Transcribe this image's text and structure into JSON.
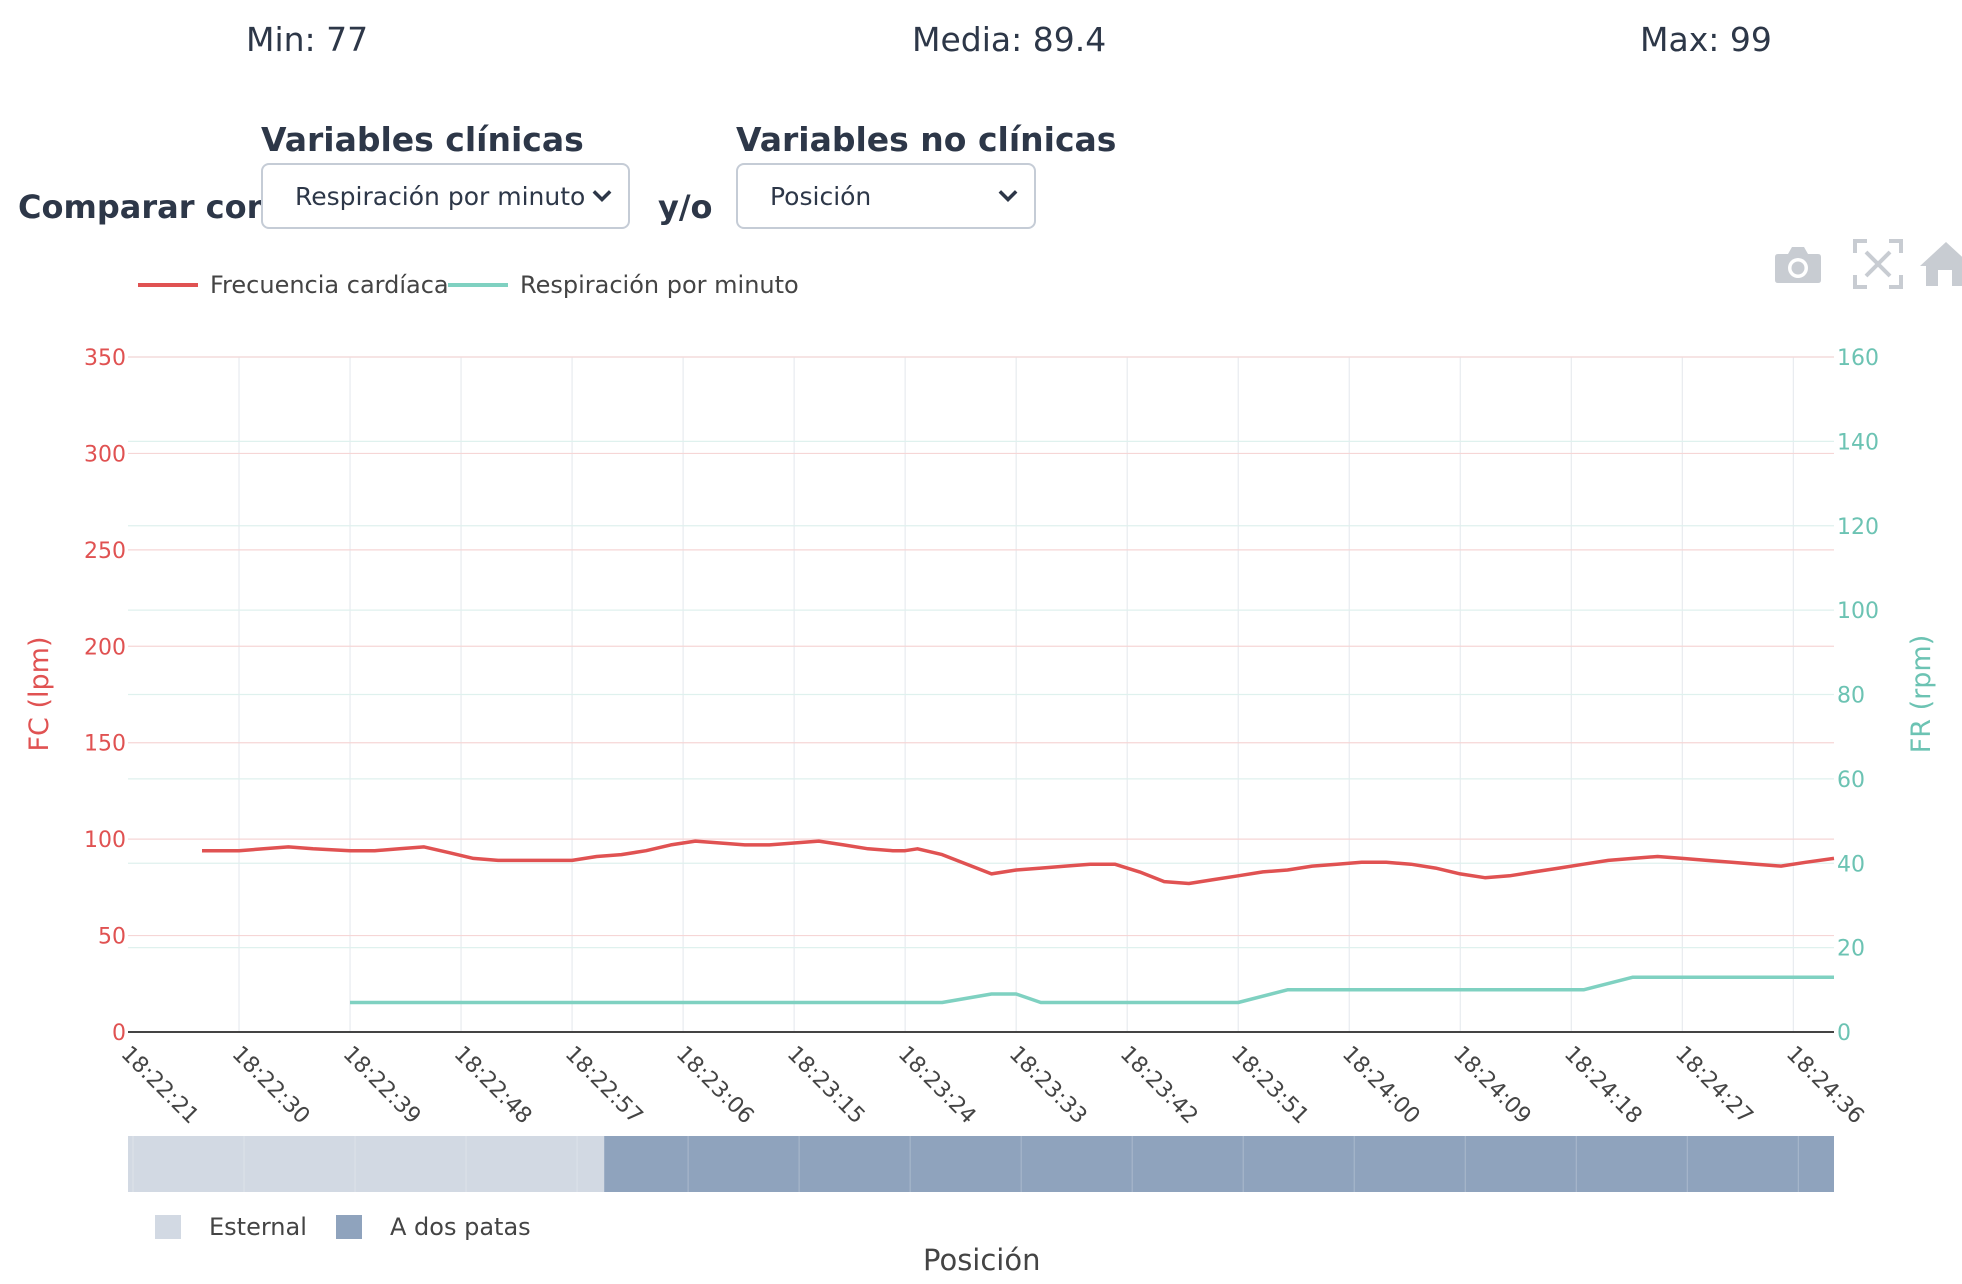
{
  "stats": {
    "min": "Min: 77",
    "mean": "Media: 89.4",
    "max": "Max: 99"
  },
  "controls": {
    "compare_label": "Comparar con",
    "clinical_label": "Variables clínicas",
    "clinical_selected": "Respiración por minuto",
    "joiner": "y/o",
    "nonclinical_label": "Variables no clínicas",
    "nonclinical_selected": "Posición"
  },
  "modebar": {
    "icons": [
      "camera-icon",
      "autoscale-icon",
      "home-icon"
    ]
  },
  "colors": {
    "hr": "#e05252",
    "rr": "#7fd1c1",
    "pos_external": "#d2d9e3",
    "pos_two_legs": "#8fa3bd",
    "grid_x": "#e3e7ec"
  },
  "chart_data": {
    "type": "line",
    "legend": [
      "Frecuencia cardíaca",
      "Respiración por minuto"
    ],
    "y_left_label": "FC (lpm)",
    "y_right_label": "FR (rpm)",
    "y_left_range": [
      0,
      350
    ],
    "y_right_range": [
      0,
      160
    ],
    "y_left_ticks": [
      "0",
      "50",
      "100",
      "150",
      "200",
      "250",
      "300",
      "350"
    ],
    "y_right_ticks": [
      "0",
      "20",
      "40",
      "60",
      "80",
      "100",
      "120",
      "140",
      "160"
    ],
    "x_ticks": [
      "18:22:21",
      "18:22:30",
      "18:22:39",
      "18:22:48",
      "18:22:57",
      "18:23:06",
      "18:23:15",
      "18:23:24",
      "18:23:33",
      "18:23:42",
      "18:23:51",
      "18:24:00",
      "18:24:09",
      "18:24:18",
      "18:24:27",
      "18:24:36"
    ],
    "x_range_seconds_from_first_tick": [
      0,
      138.3
    ],
    "series": [
      {
        "name": "Frecuencia cardíaca",
        "axis": "left",
        "x_seconds": [
          6,
          9,
          11,
          13,
          15,
          18,
          20,
          22,
          24,
          26,
          28,
          30,
          32,
          34,
          36,
          38,
          40,
          42,
          44,
          46,
          48,
          50,
          52,
          54,
          56,
          58,
          60,
          62,
          63,
          64,
          66,
          68,
          70,
          72,
          74,
          76,
          78,
          80,
          82,
          84,
          86,
          88,
          90,
          92,
          94,
          96,
          98,
          100,
          102,
          104,
          106,
          108,
          110,
          112,
          114,
          116,
          118,
          120,
          122,
          124,
          126,
          128,
          130,
          132,
          134,
          136,
          138.3
        ],
        "values": [
          94,
          94,
          95,
          96,
          95,
          94,
          94,
          95,
          96,
          93,
          90,
          89,
          89,
          89,
          89,
          91,
          92,
          94,
          97,
          99,
          98,
          97,
          97,
          98,
          99,
          97,
          95,
          94,
          94,
          95,
          92,
          87,
          82,
          84,
          85,
          86,
          87,
          87,
          83,
          78,
          77,
          79,
          81,
          83,
          84,
          86,
          87,
          88,
          88,
          87,
          85,
          82,
          80,
          81,
          83,
          85,
          87,
          89,
          90,
          91,
          90,
          89,
          88,
          87,
          86,
          88,
          90
        ]
      },
      {
        "name": "Respiración por minuto",
        "axis": "right",
        "x_seconds": [
          18,
          22,
          26,
          30,
          34,
          38,
          42,
          46,
          50,
          54,
          58,
          62,
          66,
          70,
          72,
          74,
          78,
          82,
          86,
          90,
          94,
          98,
          102,
          106,
          110,
          112,
          116,
          118,
          122,
          126,
          130,
          134,
          138.3
        ],
        "values": [
          7,
          7,
          7,
          7,
          7,
          7,
          7,
          7,
          7,
          7,
          7,
          7,
          7,
          9,
          9,
          7,
          7,
          7,
          7,
          7,
          10,
          10,
          10,
          10,
          10,
          10,
          10,
          10,
          13,
          13,
          13,
          13,
          13
        ]
      }
    ],
    "position_band": {
      "title": "Posición",
      "segments": [
        {
          "label": "Esternal",
          "x_seconds": [
            0,
            38.6
          ]
        },
        {
          "label": "A dos patas",
          "x_seconds": [
            38.6,
            138.3
          ]
        }
      ],
      "legend": [
        "Esternal",
        "A dos patas"
      ]
    }
  }
}
